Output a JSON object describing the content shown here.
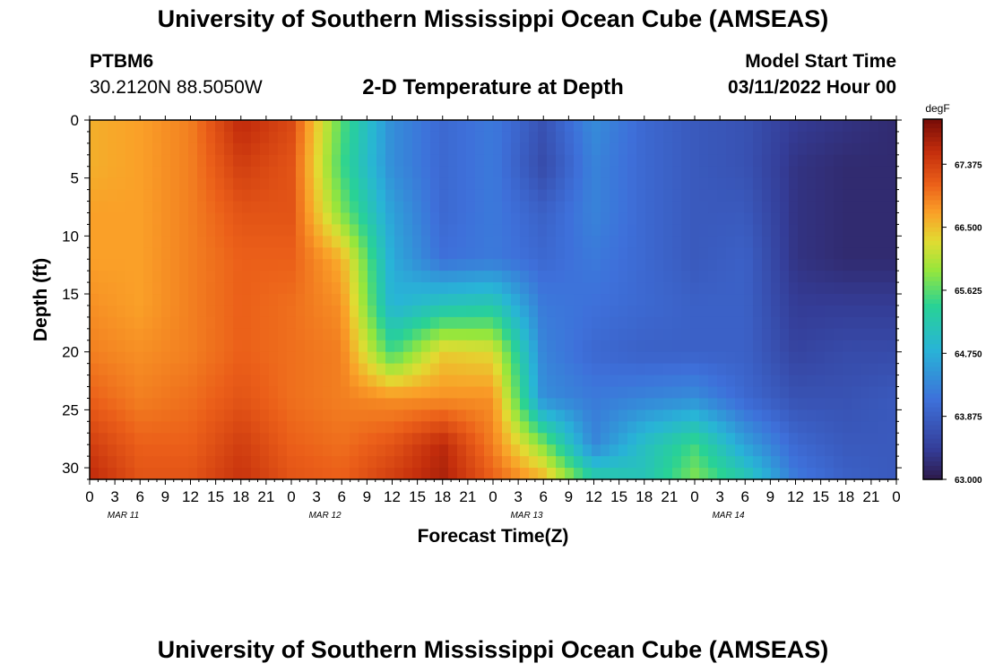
{
  "header": {
    "title": "University of Southern Mississippi Ocean Cube (AMSEAS)",
    "station_id": "PTBM6",
    "station_coords": "30.2120N  88.5050W",
    "plot_name": "2-D Temperature at Depth",
    "model_start_label": "Model Start Time",
    "model_start_value": "03/11/2022 Hour 00"
  },
  "footer": {
    "title": "University of Southern Mississippi Ocean Cube (AMSEAS)"
  },
  "chart_data": {
    "type": "heatmap",
    "title": "2-D Temperature at Depth",
    "xlabel": "Forecast Time(Z)",
    "ylabel": "Depth (ft)",
    "units": "degF",
    "x_hours": [
      0,
      12,
      24,
      36,
      48,
      60,
      72,
      84,
      96
    ],
    "x_tick_labels": [
      "0",
      "3",
      "6",
      "9",
      "12",
      "15",
      "18",
      "21",
      "0",
      "3",
      "6",
      "9",
      "12",
      "15",
      "18",
      "21",
      "0",
      "3",
      "6",
      "9",
      "12",
      "15",
      "18",
      "21",
      "0",
      "3",
      "6",
      "9",
      "12",
      "15",
      "18",
      "21",
      "0"
    ],
    "date_labels": [
      "MAR 11",
      "MAR 12",
      "MAR 13",
      "MAR 14"
    ],
    "y_ticks": [
      0,
      5,
      10,
      15,
      20,
      25,
      30
    ],
    "ylim": [
      0,
      31
    ],
    "depths_ft": [
      0,
      4,
      8,
      12,
      16,
      20,
      24,
      28,
      31
    ],
    "temperature_degF": [
      [
        66.6,
        66.7,
        66.9,
        67.6,
        67.3,
        65.6,
        64.4,
        64.0,
        64.2,
        63.7,
        64.4,
        64.0,
        63.8,
        63.7,
        63.4,
        63.3,
        63.2
      ],
      [
        66.6,
        66.7,
        66.9,
        67.4,
        67.2,
        65.5,
        64.4,
        64.0,
        64.2,
        63.6,
        64.3,
        64.0,
        63.8,
        63.7,
        63.3,
        63.2,
        63.2
      ],
      [
        66.7,
        66.7,
        66.9,
        67.2,
        67.2,
        65.8,
        64.6,
        64.0,
        64.2,
        63.9,
        64.3,
        64.0,
        63.8,
        63.8,
        63.3,
        63.2,
        63.2
      ],
      [
        66.7,
        66.7,
        66.9,
        67.1,
        67.1,
        66.6,
        64.7,
        64.1,
        64.2,
        64.0,
        64.2,
        64.0,
        63.8,
        63.9,
        63.3,
        63.2,
        63.2
      ],
      [
        66.8,
        66.7,
        66.9,
        67.1,
        67.0,
        66.8,
        64.8,
        65.1,
        65.2,
        64.2,
        64.1,
        64.0,
        63.9,
        63.9,
        63.4,
        63.4,
        63.4
      ],
      [
        66.9,
        66.8,
        66.9,
        67.1,
        67.0,
        66.9,
        65.5,
        66.4,
        66.3,
        64.3,
        64.0,
        63.9,
        63.9,
        63.9,
        63.5,
        63.6,
        63.6
      ],
      [
        67.1,
        66.9,
        67.0,
        67.2,
        67.0,
        66.9,
        66.8,
        66.8,
        66.8,
        64.4,
        64.2,
        64.3,
        64.4,
        64.0,
        63.7,
        63.7,
        63.8
      ],
      [
        67.4,
        67.1,
        67.1,
        67.4,
        67.1,
        67.0,
        67.2,
        67.6,
        66.9,
        65.8,
        64.3,
        65.0,
        65.5,
        64.6,
        64.0,
        63.8,
        63.8
      ],
      [
        67.6,
        67.2,
        67.2,
        67.5,
        67.2,
        67.1,
        67.4,
        67.7,
        67.1,
        66.6,
        65.3,
        65.1,
        65.8,
        65.2,
        64.2,
        63.9,
        63.8
      ]
    ],
    "colorbar": {
      "label": "degF",
      "range": [
        63.0,
        68.0
      ],
      "ticks": [
        67.375,
        66.5,
        65.625,
        64.75,
        63.875,
        63.0
      ],
      "tick_labels": [
        "67.375",
        "66.500",
        "65.625",
        "64.750",
        "63.875",
        "63.000"
      ]
    }
  }
}
